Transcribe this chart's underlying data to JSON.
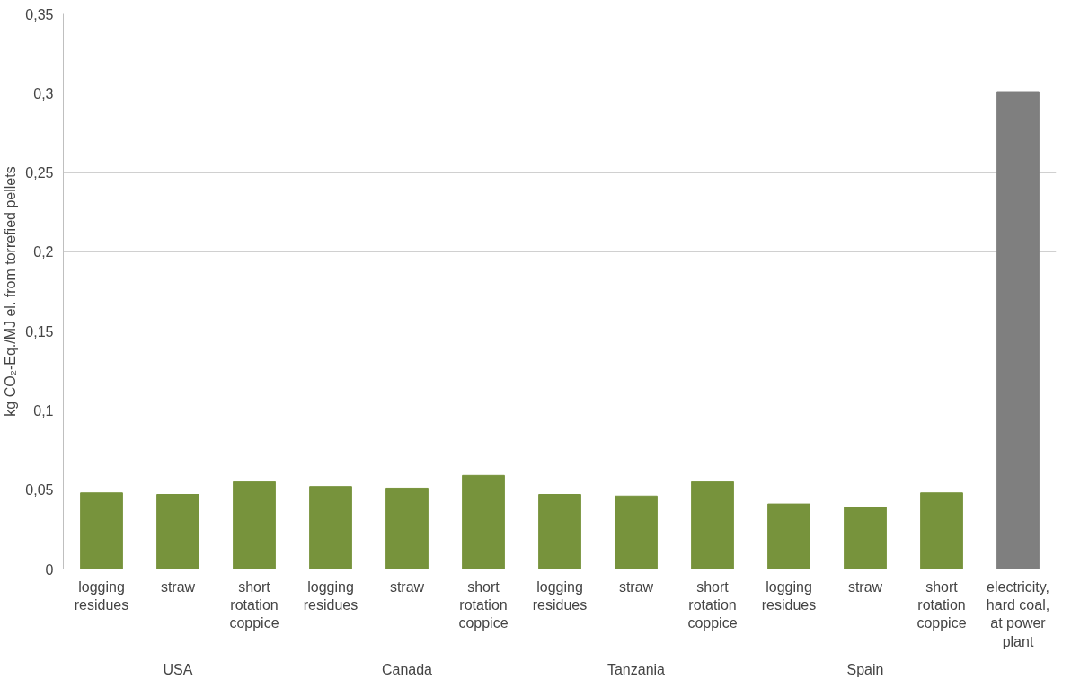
{
  "chart_data": {
    "type": "bar",
    "ylabel": "kg CO₂-Eq./MJ el. from torrefied pellets",
    "categories": [
      "logging residues",
      "straw",
      "short rotation coppice",
      "logging residues",
      "straw",
      "short rotation coppice",
      "logging residues",
      "straw",
      "short rotation coppice",
      "logging residues",
      "straw",
      "short rotation coppice",
      "electricity, hard coal, at power plant"
    ],
    "values": [
      0.048,
      0.047,
      0.055,
      0.052,
      0.051,
      0.059,
      0.047,
      0.046,
      0.055,
      0.041,
      0.039,
      0.048,
      0.301
    ],
    "colors": [
      "#77933c",
      "#77933c",
      "#77933c",
      "#77933c",
      "#77933c",
      "#77933c",
      "#77933c",
      "#77933c",
      "#77933c",
      "#77933c",
      "#77933c",
      "#77933c",
      "#7f7f7f"
    ],
    "annotations": [
      "USA",
      "Canada",
      "Tanzania",
      "Spain"
    ],
    "ylim": [
      0,
      0.35
    ],
    "yticks": [
      0,
      {
        "value": 0.05,
        "label": "0,05"
      },
      {
        "value": 0.1,
        "label": "0,1"
      },
      {
        "value": 0.15,
        "label": "0,15"
      },
      {
        "value": 0.2,
        "label": "0,2"
      },
      {
        "value": 0.25,
        "label": "0,25"
      },
      {
        "value": 0.3,
        "label": "0,3"
      },
      {
        "value": 0.35,
        "label": "0,35"
      }
    ],
    "grid": "y"
  }
}
